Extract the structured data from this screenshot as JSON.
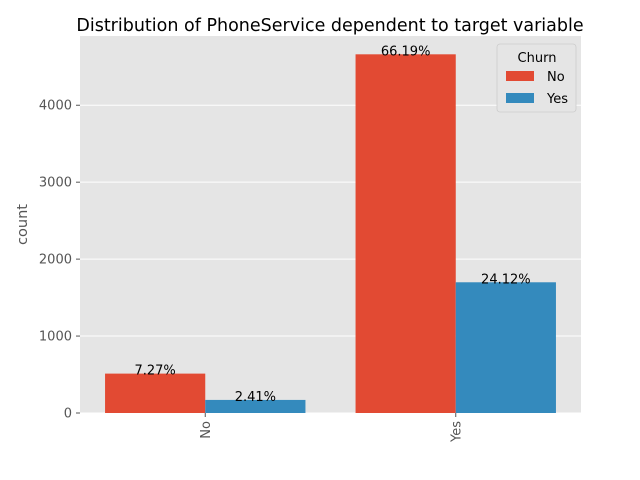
{
  "chart_data": {
    "type": "bar",
    "title": "Distribution of PhoneService dependent to target variable",
    "xlabel": "",
    "ylabel": "count",
    "categories": [
      "No",
      "Yes"
    ],
    "yticks": [
      0,
      1000,
      2000,
      3000,
      4000
    ],
    "ylim": [
      0,
      4900
    ],
    "grid": true,
    "legend": {
      "title": "Churn",
      "placement": "top-right"
    },
    "series": [
      {
        "name": "No",
        "color": "#E24A33",
        "values": [
          512,
          4662
        ],
        "labels": [
          "7.27%",
          "66.19%"
        ]
      },
      {
        "name": "Yes",
        "color": "#348ABD",
        "values": [
          170,
          1699
        ],
        "labels": [
          "2.41%",
          "24.12%"
        ]
      }
    ]
  }
}
